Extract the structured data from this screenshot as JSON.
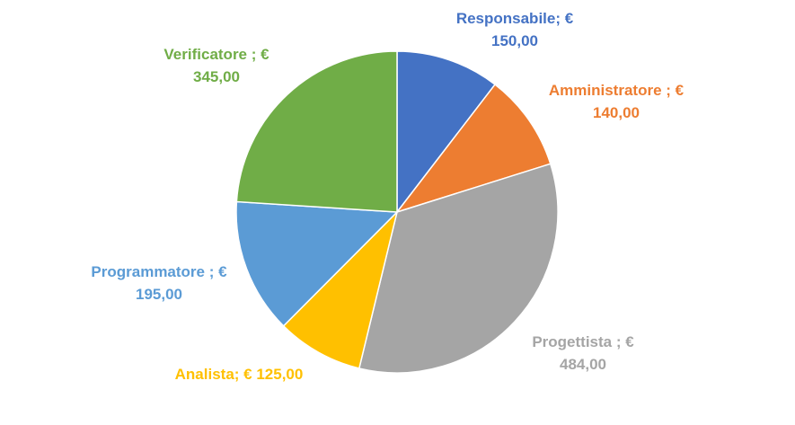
{
  "chart_data": {
    "type": "pie",
    "title": "",
    "currency": "€",
    "slices": [
      {
        "name": "Responsabile",
        "value": 150.0,
        "color": "#4472C4",
        "label_line1": "Responsabile; €",
        "label_line2": "150,00"
      },
      {
        "name": "Amministratore",
        "value": 140.0,
        "color": "#ED7D31",
        "label_line1": "Amministratore ; €",
        "label_line2": "140,00"
      },
      {
        "name": "Progettista",
        "value": 484.0,
        "color": "#A5A5A5",
        "label_line1": "Progettista ; €",
        "label_line2": "484,00"
      },
      {
        "name": "Analista",
        "value": 125.0,
        "color": "#FFC000",
        "label_line1": "Analista; € 125,00",
        "label_line2": ""
      },
      {
        "name": "Programmatore",
        "value": 195.0,
        "color": "#5B9BD5",
        "label_line1": "Programmatore ; €",
        "label_line2": "195,00"
      },
      {
        "name": "Verificatore",
        "value": 345.0,
        "color": "#70AD47",
        "label_line1": "Verificatore ; €",
        "label_line2": "345,00"
      }
    ]
  }
}
